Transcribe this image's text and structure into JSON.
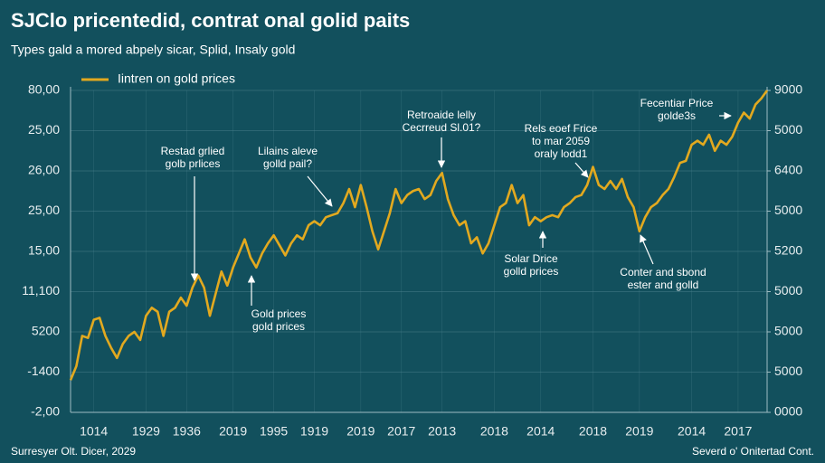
{
  "chart_data": {
    "type": "line",
    "title": "SJClo pricentedid, contrat onal golid paits",
    "subtitle": "Types gald a mored abpely sicar, Splid, Insaly gold",
    "footer_left": "Surresyer Olt. Dicer, 2029",
    "footer_right": "Severd o' Onitertad Cont.",
    "xlim": [
      0,
      120
    ],
    "xticks": [
      {
        "value": 4,
        "label": "1014"
      },
      {
        "value": 13,
        "label": "1929"
      },
      {
        "value": 20,
        "label": "1936"
      },
      {
        "value": 28,
        "label": "2019"
      },
      {
        "value": 35,
        "label": "1995"
      },
      {
        "value": 42,
        "label": "1919"
      },
      {
        "value": 50,
        "label": "2019"
      },
      {
        "value": 57,
        "label": "2017"
      },
      {
        "value": 64,
        "label": "2013"
      },
      {
        "value": 73,
        "label": "2018"
      },
      {
        "value": 81,
        "label": "2014"
      },
      {
        "value": 90,
        "label": "2018"
      },
      {
        "value": 98,
        "label": "2019"
      },
      {
        "value": 107,
        "label": "2014"
      },
      {
        "value": 115,
        "label": "2017"
      }
    ],
    "ylim": [
      0,
      8
    ],
    "yticks": [
      {
        "value": 0,
        "label": "-2,00"
      },
      {
        "value": 1,
        "label": "-1400"
      },
      {
        "value": 2,
        "label": "5200"
      },
      {
        "value": 3,
        "label": "11,100"
      },
      {
        "value": 4,
        "label": "15,00"
      },
      {
        "value": 5,
        "label": "25,00"
      },
      {
        "value": 6,
        "label": "26,00"
      },
      {
        "value": 7,
        "label": "25,00"
      },
      {
        "value": 8,
        "label": "80,00"
      }
    ],
    "y2lim": [
      0,
      8
    ],
    "y2ticks": [
      {
        "value": 0,
        "label": "0000"
      },
      {
        "value": 1,
        "label": "5000"
      },
      {
        "value": 2,
        "label": "5000"
      },
      {
        "value": 3,
        "label": "5000"
      },
      {
        "value": 4,
        "label": "5200"
      },
      {
        "value": 5,
        "label": "5000"
      },
      {
        "value": 6,
        "label": "6400"
      },
      {
        "value": 7,
        "label": "5000"
      },
      {
        "value": 8,
        "label": "9000"
      }
    ],
    "grid": true,
    "legend": "top-left",
    "series": [
      {
        "name": "Iintren on gold prices",
        "color": "#e2a91f",
        "values": [
          0.8,
          1.15,
          1.9,
          1.85,
          2.3,
          2.35,
          1.9,
          1.6,
          1.35,
          1.7,
          1.9,
          2.0,
          1.8,
          2.4,
          2.6,
          2.5,
          1.9,
          2.5,
          2.6,
          2.85,
          2.65,
          3.1,
          3.4,
          3.1,
          2.4,
          2.95,
          3.5,
          3.15,
          3.6,
          3.95,
          4.3,
          3.85,
          3.6,
          3.95,
          4.2,
          4.4,
          4.15,
          3.9,
          4.2,
          4.4,
          4.3,
          4.65,
          4.75,
          4.65,
          4.85,
          4.9,
          4.95,
          5.2,
          5.55,
          5.1,
          5.65,
          5.1,
          4.5,
          4.05,
          4.5,
          4.95,
          5.55,
          5.2,
          5.4,
          5.5,
          5.55,
          5.3,
          5.4,
          5.75,
          5.95,
          5.3,
          4.9,
          4.65,
          4.75,
          4.2,
          4.35,
          3.95,
          4.2,
          4.65,
          5.1,
          5.2,
          5.65,
          5.2,
          5.4,
          4.65,
          4.85,
          4.75,
          4.85,
          4.9,
          4.85,
          5.1,
          5.2,
          5.35,
          5.4,
          5.65,
          6.1,
          5.65,
          5.55,
          5.75,
          5.55,
          5.8,
          5.35,
          5.1,
          4.5,
          4.85,
          5.1,
          5.2,
          5.4,
          5.55,
          5.85,
          6.2,
          6.25,
          6.65,
          6.75,
          6.65,
          6.9,
          6.5,
          6.75,
          6.65,
          6.85,
          7.2,
          7.45,
          7.3,
          7.65,
          7.8,
          8.0
        ]
      }
    ],
    "annotations": [
      [
        "Restad grlied",
        "golb prlices"
      ],
      [
        "Lilains aleve",
        "golld pail?"
      ],
      [
        "Retroaide lelly",
        "Cecrreud Sl.01?"
      ],
      [
        "Rels eoef Frice",
        "to mar 2059",
        "oraly lodd1"
      ],
      [
        "Fecentiar Price",
        "golde3s"
      ],
      [
        "Gold prices",
        "gold prices"
      ],
      [
        "Solar Drice",
        "golld prices"
      ],
      [
        "Conter and sbond",
        "ester and golld"
      ]
    ]
  }
}
